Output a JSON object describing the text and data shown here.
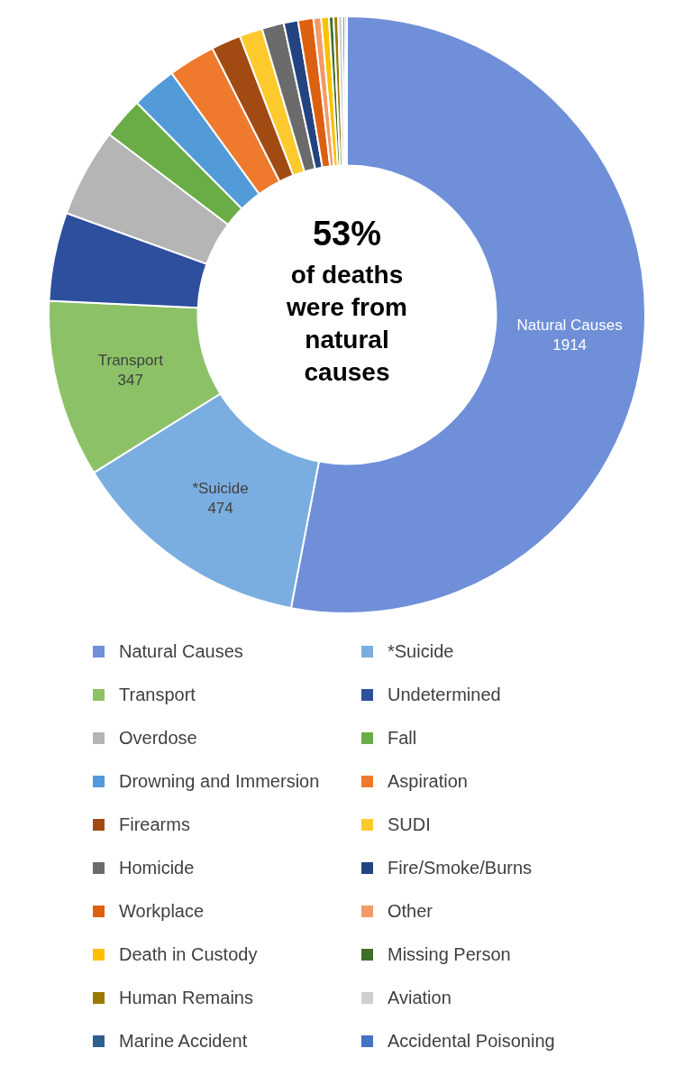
{
  "chart_data": {
    "type": "donut",
    "categories": [
      "Natural Causes",
      "*Suicide",
      "Transport",
      "Undetermined",
      "Overdose",
      "Fall",
      "Drowning and Immersion",
      "Aspiration",
      "Firearms",
      "SUDI",
      "Homicide",
      "Fire/Smoke/Burns",
      "Workplace",
      "Other",
      "Death in Custody",
      "Missing Person",
      "Human Remains",
      "Aviation",
      "Marine Accident",
      "Accidental Poisoning"
    ],
    "values": [
      1914,
      474,
      347,
      173,
      173,
      81,
      88,
      92,
      58,
      45,
      43,
      28,
      30,
      15,
      15,
      9,
      9,
      8,
      5,
      4
    ],
    "colors": [
      "#6f8fd8",
      "#7aaee0",
      "#8cc168",
      "#2e4f9e",
      "#b5b5b5",
      "#6aac45",
      "#539ad9",
      "#ef7a2e",
      "#a14b12",
      "#fdca2e",
      "#6b6b6b",
      "#234480",
      "#dd6010",
      "#f29a68",
      "#ffc000",
      "#3f6f2a",
      "#9c7a00",
      "#cfcfcf",
      "#2d5f8f",
      "#4472c4"
    ],
    "value_labels": [
      "1914",
      "474",
      "347",
      null,
      null,
      null,
      null,
      null,
      null,
      null,
      null,
      null,
      null,
      null,
      null,
      null,
      null,
      null,
      null,
      null
    ],
    "annotations": [
      "53%",
      "of deaths were from natural causes"
    ],
    "legend": "bottom"
  }
}
